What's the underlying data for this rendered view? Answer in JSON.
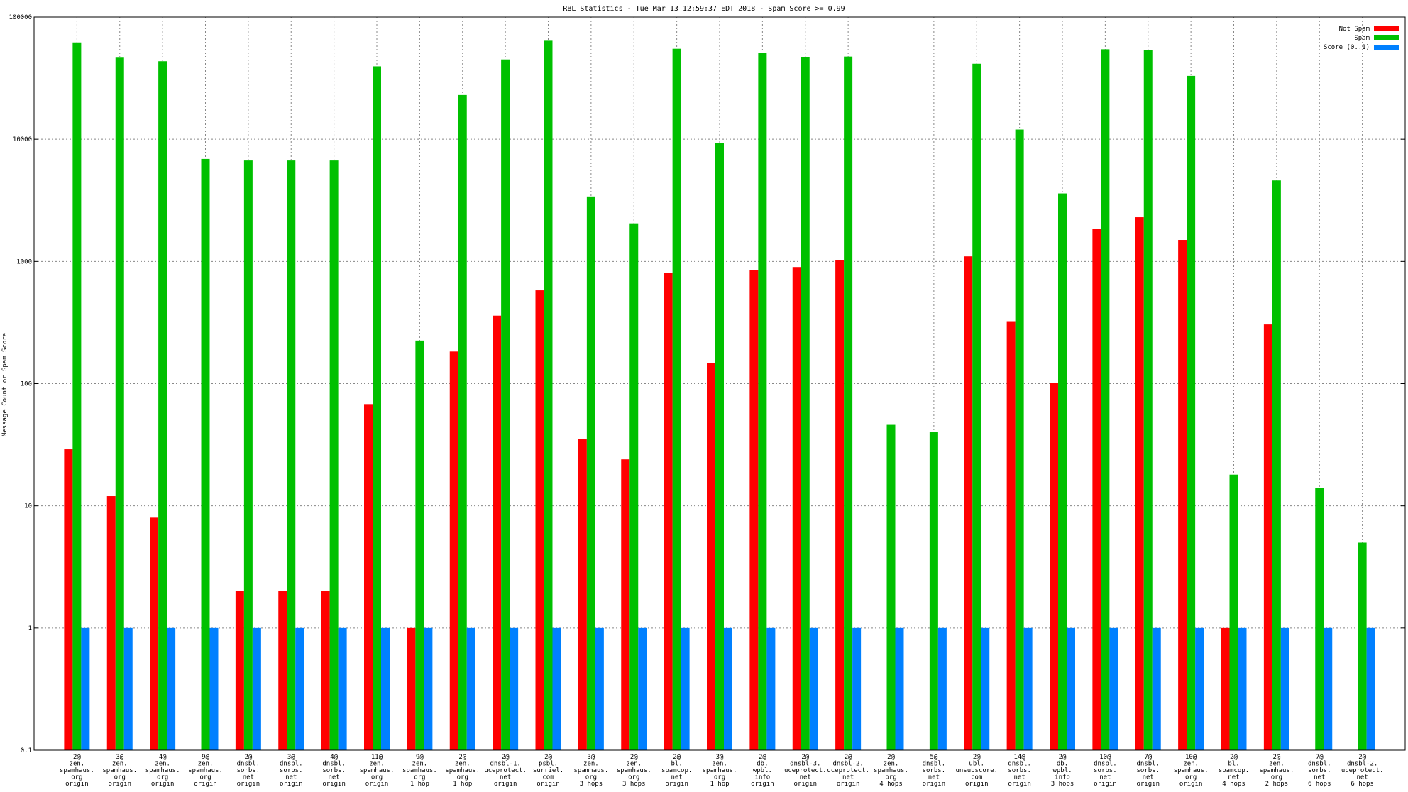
{
  "chart_data": {
    "type": "bar",
    "title": "RBL Statistics - Tue Mar 13 12:59:37 EDT 2018 - Spam Score >= 0.99",
    "xlabel": "",
    "ylabel": "Message Count or Spam Score",
    "yscale": "log",
    "ylim": [
      0.1,
      100000
    ],
    "y_ticks": [
      "0.1",
      "1",
      "10",
      "100",
      "1000",
      "10000",
      "100000"
    ],
    "grid": true,
    "legend_position": "top-right",
    "categories": [
      [
        "2@",
        "zen.",
        "spamhaus.",
        "org",
        "origin"
      ],
      [
        "3@",
        "zen.",
        "spamhaus.",
        "org",
        "origin"
      ],
      [
        "4@",
        "zen.",
        "spamhaus.",
        "org",
        "origin"
      ],
      [
        "9@",
        "zen.",
        "spamhaus.",
        "org",
        "origin"
      ],
      [
        "2@",
        "dnsbl.",
        "sorbs.",
        "net",
        "origin"
      ],
      [
        "3@",
        "dnsbl.",
        "sorbs.",
        "net",
        "origin"
      ],
      [
        "4@",
        "dnsbl.",
        "sorbs.",
        "net",
        "origin"
      ],
      [
        "11@",
        "zen.",
        "spamhaus.",
        "org",
        "origin"
      ],
      [
        "9@",
        "zen.",
        "spamhaus.",
        "org",
        "1 hop"
      ],
      [
        "2@",
        "zen.",
        "spamhaus.",
        "org",
        "1 hop"
      ],
      [
        "2@",
        "dnsbl-1.",
        "uceprotect.",
        "net",
        "origin"
      ],
      [
        "2@",
        "psbl.",
        "surriel.",
        "com",
        "origin"
      ],
      [
        "3@",
        "zen.",
        "spamhaus.",
        "org",
        "3 hops"
      ],
      [
        "2@",
        "zen.",
        "spamhaus.",
        "org",
        "3 hops"
      ],
      [
        "2@",
        "bl.",
        "spamcop.",
        "net",
        "origin"
      ],
      [
        "3@",
        "zen.",
        "spamhaus.",
        "org",
        "1 hop"
      ],
      [
        "2@",
        "db.",
        "wpbl.",
        "info",
        "origin"
      ],
      [
        "2@",
        "dnsbl-3.",
        "uceprotect.",
        "net",
        "origin"
      ],
      [
        "2@",
        "dnsbl-2.",
        "uceprotect.",
        "net",
        "origin"
      ],
      [
        "2@",
        "zen.",
        "spamhaus.",
        "org",
        "4 hops"
      ],
      [
        "5@",
        "dnsbl.",
        "sorbs.",
        "net",
        "origin"
      ],
      [
        "2@",
        "ubl.",
        "unsubscore.",
        "com",
        "origin"
      ],
      [
        "14@",
        "dnsbl.",
        "sorbs.",
        "net",
        "origin"
      ],
      [
        "2@",
        "db.",
        "wpbl.",
        "info",
        "3 hops"
      ],
      [
        "10@",
        "dnsbl.",
        "sorbs.",
        "net",
        "origin"
      ],
      [
        "7@",
        "dnsbl.",
        "sorbs.",
        "net",
        "origin"
      ],
      [
        "10@",
        "zen.",
        "spamhaus.",
        "org",
        "origin"
      ],
      [
        "2@",
        "bl.",
        "spamcop.",
        "net",
        "4 hops"
      ],
      [
        "2@",
        "zen.",
        "spamhaus.",
        "org",
        "2 hops"
      ],
      [
        "7@",
        "dnsbl.",
        "sorbs.",
        "net",
        "6 hops"
      ],
      [
        "2@",
        "dnsbl-2.",
        "uceprotect.",
        "net",
        "6 hops"
      ]
    ],
    "series": [
      {
        "name": "Not Spam",
        "color": "#ff0000",
        "values": [
          29,
          12,
          8,
          null,
          2,
          2,
          2,
          68,
          1,
          183,
          360,
          580,
          35,
          24,
          810,
          148,
          850,
          900,
          1030,
          null,
          null,
          1100,
          320,
          102,
          1850,
          2300,
          1500,
          1,
          305,
          null,
          null
        ]
      },
      {
        "name": "Spam",
        "color": "#00c000",
        "values": [
          62000,
          46500,
          43500,
          6900,
          6700,
          6700,
          6700,
          39500,
          225,
          23000,
          45000,
          64000,
          3400,
          2050,
          55000,
          9300,
          51000,
          47000,
          47500,
          46,
          40,
          41500,
          12000,
          3600,
          54500,
          54000,
          33000,
          18,
          4600,
          14,
          5
        ]
      },
      {
        "name": "Score (0..1)",
        "color": "#0080ff",
        "values": [
          1,
          1,
          1,
          1,
          1,
          1,
          1,
          1,
          1,
          1,
          1,
          1,
          1,
          1,
          1,
          1,
          1,
          1,
          1,
          1,
          1,
          1,
          1,
          1,
          1,
          1,
          1,
          1,
          1,
          1,
          1
        ]
      }
    ]
  }
}
